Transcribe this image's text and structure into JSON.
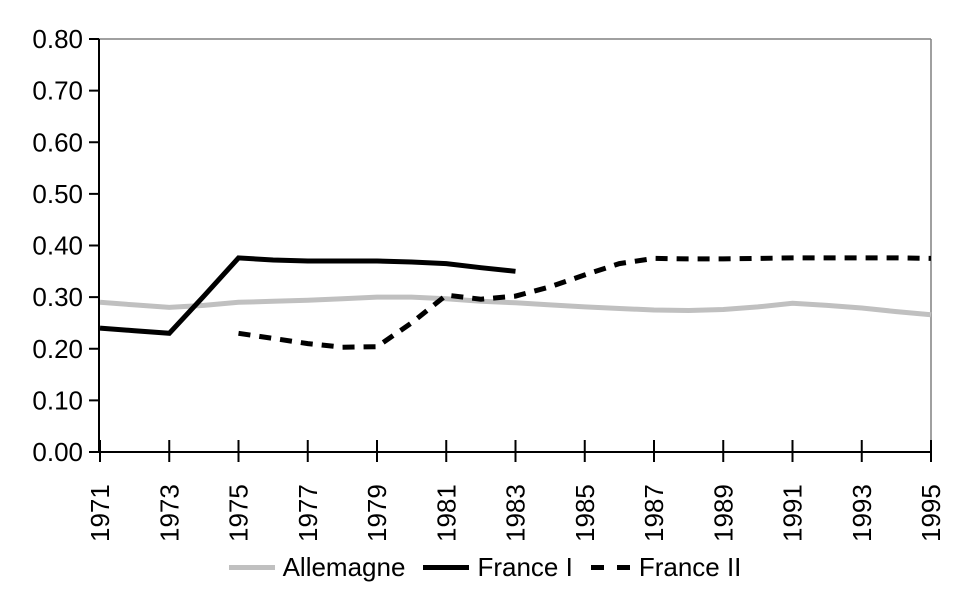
{
  "chart_data": {
    "type": "line",
    "grid": false,
    "legend_position": "bottom",
    "x_tick_rotation": 90,
    "xlim": [
      1971,
      1995
    ],
    "ylim": [
      0.0,
      0.8
    ],
    "x_ticks": [
      1971,
      1973,
      1975,
      1977,
      1979,
      1981,
      1983,
      1985,
      1987,
      1989,
      1991,
      1993,
      1995
    ],
    "y_ticks": [
      {
        "v": 0.0,
        "label": "0.00"
      },
      {
        "v": 0.1,
        "label": "0.10"
      },
      {
        "v": 0.2,
        "label": "0.20"
      },
      {
        "v": 0.3,
        "label": "0.30"
      },
      {
        "v": 0.4,
        "label": "0.40"
      },
      {
        "v": 0.5,
        "label": "0.50"
      },
      {
        "v": 0.6,
        "label": "0.60"
      },
      {
        "v": 0.7,
        "label": "0.70"
      },
      {
        "v": 0.8,
        "label": "0.80"
      }
    ],
    "axis_color": "#000000",
    "border_color": "#808080",
    "series": [
      {
        "id": "allemagne",
        "name": "Allemagne",
        "color": "#c0c0c0",
        "style": "solid",
        "width": 5,
        "x": [
          1971,
          1972,
          1973,
          1974,
          1975,
          1976,
          1977,
          1978,
          1979,
          1980,
          1981,
          1982,
          1983,
          1984,
          1985,
          1986,
          1987,
          1988,
          1989,
          1990,
          1991,
          1992,
          1993,
          1994,
          1995
        ],
        "values": [
          0.29,
          0.285,
          0.28,
          0.284,
          0.29,
          0.292,
          0.294,
          0.297,
          0.3,
          0.3,
          0.297,
          0.292,
          0.289,
          0.285,
          0.281,
          0.278,
          0.275,
          0.274,
          0.276,
          0.281,
          0.288,
          0.284,
          0.279,
          0.272,
          0.266
        ]
      },
      {
        "id": "france1",
        "name": "France I",
        "color": "#000000",
        "style": "solid",
        "width": 5,
        "x": [
          1971,
          1972,
          1973,
          1974,
          1975,
          1976,
          1977,
          1978,
          1979,
          1980,
          1981,
          1982,
          1983
        ],
        "values": [
          0.24,
          0.235,
          0.23,
          0.302,
          0.376,
          0.372,
          0.37,
          0.37,
          0.37,
          0.368,
          0.365,
          0.357,
          0.35
        ]
      },
      {
        "id": "france2",
        "name": "France II",
        "color": "#000000",
        "style": "dashed",
        "width": 5,
        "x": [
          1975,
          1976,
          1977,
          1978,
          1979,
          1980,
          1981,
          1982,
          1983,
          1984,
          1985,
          1986,
          1987,
          1988,
          1989,
          1990,
          1991,
          1992,
          1993,
          1994,
          1995
        ],
        "values": [
          0.23,
          0.22,
          0.21,
          0.203,
          0.204,
          0.25,
          0.304,
          0.296,
          0.302,
          0.32,
          0.343,
          0.365,
          0.375,
          0.374,
          0.374,
          0.375,
          0.376,
          0.376,
          0.376,
          0.376,
          0.375
        ]
      }
    ]
  }
}
